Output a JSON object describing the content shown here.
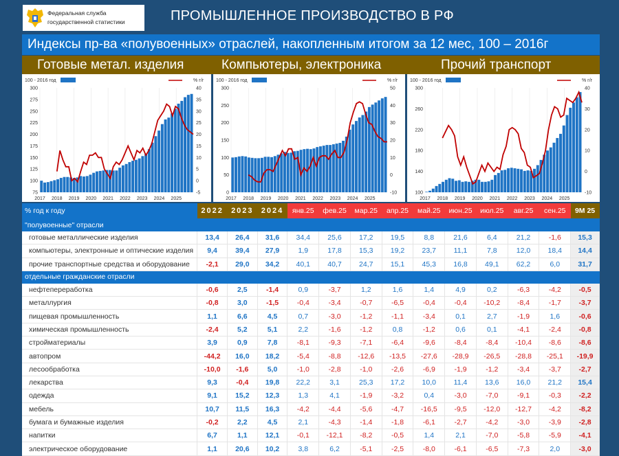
{
  "header": {
    "logo_line1": "Федеральная служба",
    "logo_line2": "государственной статистики",
    "title": "ПРОМЫШЛЕННОЕ ПРОИЗВОДСТВО В РФ",
    "subtitle": "Индексы пр-ва «полувоенных» отраслей, накопленным итогом за 12 мес, 100 – 2016г"
  },
  "categories": [
    "Готовые метал. изделия",
    "Компьютеры, электроника",
    "Прочий транспорт"
  ],
  "colors": {
    "background": "#1f4e79",
    "subtitle_bar": "#1373c9",
    "category_bar": "#7f6000",
    "month_header": "#f23b3b",
    "bars": "#1f74c5",
    "line": "#c00000",
    "positive": "#1f74c5",
    "negative": "#d01f1f"
  },
  "chart_data": [
    {
      "type": "bar+line",
      "title": "Готовые метал. изделия",
      "legend": {
        "bars": "100 - 2016 год",
        "line": "% г/г"
      },
      "x_ticks": [
        "2017",
        "2018",
        "2019",
        "2020",
        "2021",
        "2022",
        "2023",
        "2024",
        "2025"
      ],
      "y_left": {
        "min": 75,
        "max": 300,
        "ticks": [
          75,
          100,
          125,
          150,
          175,
          200,
          225,
          250,
          275,
          300
        ]
      },
      "y_right": {
        "min": -5,
        "max": 40,
        "ticks": [
          -5,
          0,
          5,
          10,
          15,
          20,
          25,
          30,
          35,
          40
        ]
      },
      "bars_index": [
        100,
        96,
        97,
        99,
        101,
        103,
        106,
        108,
        108,
        107,
        106,
        107,
        110,
        109,
        110,
        113,
        117,
        120,
        121,
        122,
        123,
        123,
        122,
        122,
        128,
        133,
        136,
        140,
        143,
        145,
        148,
        153,
        158,
        168,
        182,
        196,
        208,
        222,
        232,
        236,
        245,
        255,
        266,
        272,
        280,
        285,
        287
      ],
      "line_yoy": [
        4,
        13,
        9,
        6,
        6,
        0,
        1,
        -0.5,
        4,
        8,
        7,
        11,
        11,
        12,
        10,
        10,
        5,
        3,
        1,
        6,
        8,
        7,
        9,
        12,
        15,
        12,
        9,
        13,
        12,
        14,
        11,
        13,
        16,
        21,
        26,
        28,
        30,
        33,
        32,
        28,
        32,
        31,
        27,
        24,
        22,
        21,
        20
      ]
    },
    {
      "type": "bar+line",
      "title": "Компьютеры, электроника",
      "legend": {
        "bars": "100 - 2016 год",
        "line": "% г/г"
      },
      "x_ticks": [
        "2017",
        "2018",
        "2019",
        "2020",
        "2021",
        "2022",
        "2023",
        "2024",
        "2025"
      ],
      "y_left": {
        "min": 0,
        "max": 300,
        "ticks": [
          0,
          50,
          100,
          150,
          200,
          250,
          300
        ]
      },
      "y_right": {
        "min": -10,
        "max": 50,
        "ticks": [
          -10,
          0,
          10,
          20,
          30,
          40,
          50
        ]
      },
      "bars_index": [
        100,
        101,
        103,
        104,
        103,
        100,
        99,
        98,
        98,
        99,
        102,
        102,
        101,
        104,
        108,
        112,
        116,
        113,
        114,
        118,
        119,
        122,
        124,
        125,
        124,
        126,
        130,
        132,
        134,
        136,
        136,
        138,
        140,
        142,
        148,
        160,
        180,
        195,
        205,
        215,
        222,
        232,
        245,
        252,
        258,
        264,
        270,
        274
      ],
      "line_yoy": [
        0,
        -1,
        -3,
        -4,
        -4,
        1,
        3,
        3,
        2,
        6,
        10,
        14,
        11,
        15,
        15,
        9,
        10,
        0,
        4,
        2,
        5,
        10,
        5,
        10,
        11,
        11,
        9,
        12,
        14,
        10,
        10,
        13,
        20,
        30,
        36,
        41,
        42,
        41,
        35,
        30,
        29,
        25,
        22,
        21,
        19,
        19
      ]
    },
    {
      "type": "bar+line",
      "title": "Прочий транспорт",
      "legend": {
        "bars": "100 - 2016 год",
        "line": "% г/г"
      },
      "x_ticks": [
        "2017",
        "2018",
        "2019",
        "2020",
        "2021",
        "2022",
        "2023",
        "2024",
        "2025"
      ],
      "y_left": {
        "min": 100,
        "max": 300,
        "ticks": [
          100,
          140,
          180,
          220,
          260,
          300
        ]
      },
      "y_right": {
        "min": -10,
        "max": 40,
        "ticks": [
          -10,
          0,
          10,
          20,
          30,
          40
        ]
      },
      "bars_index": [
        101,
        103,
        107,
        112,
        116,
        120,
        124,
        127,
        126,
        122,
        123,
        120,
        121,
        120,
        122,
        124,
        124,
        120,
        120,
        121,
        124,
        133,
        137,
        142,
        143,
        146,
        147,
        146,
        145,
        144,
        141,
        142,
        141,
        145,
        152,
        162,
        172,
        180,
        186,
        195,
        204,
        212,
        228,
        248,
        262,
        272,
        282,
        292
      ],
      "line_yoy": [
        16,
        19,
        22,
        20,
        17,
        7,
        3,
        7,
        2,
        -2,
        -6,
        -5,
        -1,
        3,
        0,
        4,
        2,
        0,
        2,
        1,
        8,
        12,
        20,
        21,
        20,
        18,
        11,
        9,
        3,
        2,
        -3,
        -2,
        -1,
        4,
        10,
        20,
        27,
        31,
        30,
        26,
        27,
        35,
        34,
        33,
        35,
        38,
        33
      ]
    }
  ],
  "table": {
    "header": {
      "label": "% год к году",
      "years": [
        "2022",
        "2023",
        "2024"
      ],
      "months": [
        "янв.25",
        "фев.25",
        "мар.25",
        "апр.25",
        "май.25",
        "июн.25",
        "июл.25",
        "авг.25",
        "сен.25"
      ],
      "total": "9М 25"
    },
    "sections": [
      {
        "title": "\"полувоенные\" отрасли",
        "rows": [
          {
            "name": "готовые металлические изделия",
            "years": [
              "13,4",
              "26,4",
              "31,6"
            ],
            "months": [
              "34,4",
              "25,6",
              "17,2",
              "19,5",
              "8,8",
              "21,6",
              "6,4",
              "21,2",
              "-1,6"
            ],
            "total": "15,3"
          },
          {
            "name": "компьютеры, электронные и оптические изделия",
            "years": [
              "9,4",
              "39,4",
              "27,9"
            ],
            "months": [
              "1,9",
              "17,8",
              "15,3",
              "19,2",
              "23,7",
              "11,1",
              "7,8",
              "12,0",
              "18,4"
            ],
            "total": "14,4"
          },
          {
            "name": "прочие транспортные средства и оборудование",
            "years": [
              "-2,1",
              "29,0",
              "34,2"
            ],
            "months": [
              "40,1",
              "40,7",
              "24,7",
              "15,1",
              "45,3",
              "16,8",
              "49,1",
              "62,2",
              "6,0"
            ],
            "total": "31,7"
          }
        ]
      },
      {
        "title": "отдельные гражданские отрасли",
        "rows": [
          {
            "name": "нефтепереработка",
            "years": [
              "-0,6",
              "2,5",
              "-1,4"
            ],
            "months": [
              "0,9",
              "-3,7",
              "1,2",
              "1,6",
              "1,4",
              "4,9",
              "0,2",
              "-6,3",
              "-4,2"
            ],
            "total": "-0,5"
          },
          {
            "name": "металлургия",
            "years": [
              "-0,8",
              "3,0",
              "-1,5"
            ],
            "months": [
              "-0,4",
              "-3,4",
              "-0,7",
              "-6,5",
              "-0,4",
              "-0,4",
              "-10,2",
              "-8,4",
              "-1,7"
            ],
            "total": "-3,7"
          },
          {
            "name": "пищевая промышленность",
            "years": [
              "1,1",
              "6,6",
              "4,5"
            ],
            "months": [
              "0,7",
              "-3,0",
              "-1,2",
              "-1,1",
              "-3,4",
              "0,1",
              "2,7",
              "-1,9",
              "1,6"
            ],
            "total": "-0,6"
          },
          {
            "name": "химическая промышленность",
            "years": [
              "-2,4",
              "5,2",
              "5,1"
            ],
            "months": [
              "2,2",
              "-1,6",
              "-1,2",
              "0,8",
              "-1,2",
              "0,6",
              "0,1",
              "-4,1",
              "-2,4"
            ],
            "total": "-0,8"
          },
          {
            "name": "стройматериалы",
            "years": [
              "3,9",
              "0,9",
              "7,8"
            ],
            "months": [
              "-8,1",
              "-9,3",
              "-7,1",
              "-6,4",
              "-9,6",
              "-8,4",
              "-8,4",
              "-10,4",
              "-8,6"
            ],
            "total": "-8,6"
          },
          {
            "name": "автопром",
            "years": [
              "-44,2",
              "16,0",
              "18,2"
            ],
            "months": [
              "-5,4",
              "-8,8",
              "-12,6",
              "-13,5",
              "-27,6",
              "-28,9",
              "-26,5",
              "-28,8",
              "-25,1"
            ],
            "total": "-19,9"
          },
          {
            "name": "лесообработка",
            "years": [
              "-10,0",
              "-1,6",
              "5,0"
            ],
            "months": [
              "-1,0",
              "-2,8",
              "-1,0",
              "-2,6",
              "-6,9",
              "-1,9",
              "-1,2",
              "-3,4",
              "-3,7"
            ],
            "total": "-2,7"
          },
          {
            "name": "лекарства",
            "years": [
              "9,3",
              "-0,4",
              "19,8"
            ],
            "months": [
              "22,2",
              "3,1",
              "25,3",
              "17,2",
              "10,0",
              "11,4",
              "13,6",
              "16,0",
              "21,2"
            ],
            "total": "15,4"
          },
          {
            "name": "одежда",
            "years": [
              "9,1",
              "15,2",
              "12,3"
            ],
            "months": [
              "1,3",
              "4,1",
              "-1,9",
              "-3,2",
              "0,4",
              "-3,0",
              "-7,0",
              "-9,1",
              "-0,3"
            ],
            "total": "-2,2"
          },
          {
            "name": "мебель",
            "years": [
              "10,7",
              "11,5",
              "16,3"
            ],
            "months": [
              "-4,2",
              "-4,4",
              "-5,6",
              "-4,7",
              "-16,5",
              "-9,5",
              "-12,0",
              "-12,7",
              "-4,2"
            ],
            "total": "-8,2"
          },
          {
            "name": "бумага и бумажные изделия",
            "years": [
              "-0,2",
              "2,2",
              "4,5"
            ],
            "months": [
              "2,1",
              "-4,3",
              "-1,4",
              "-1,8",
              "-6,1",
              "-2,7",
              "-4,2",
              "-3,0",
              "-3,9"
            ],
            "total": "-2,8"
          },
          {
            "name": "напитки",
            "years": [
              "6,7",
              "1,1",
              "12,1"
            ],
            "months": [
              "-0,1",
              "-12,1",
              "-8,2",
              "-0,5",
              "1,4",
              "2,1",
              "-7,0",
              "-5,8",
              "-5,9"
            ],
            "total": "-4,1"
          },
          {
            "name": "электрическое оборудование",
            "years": [
              "1,1",
              "20,6",
              "10,2"
            ],
            "months": [
              "3,8",
              "6,2",
              "-5,1",
              "-2,5",
              "-8,0",
              "-6,1",
              "-6,5",
              "-7,3",
              "2,0"
            ],
            "total": "-3,0"
          }
        ]
      }
    ]
  }
}
